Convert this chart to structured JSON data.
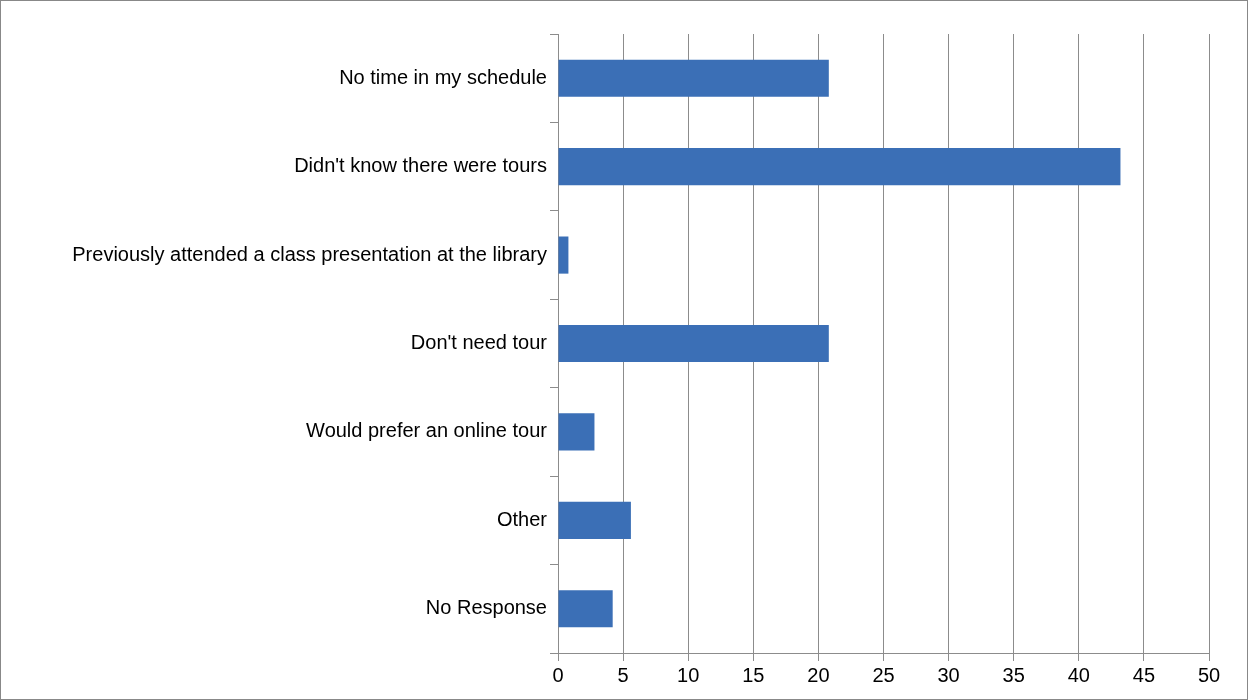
{
  "chart_data": {
    "type": "bar",
    "orientation": "horizontal",
    "categories": [
      "No time in my schedule",
      "Didn't know there were tours",
      "Previously attended a class presentation at the library",
      "Don't need tour",
      "Would prefer an online tour",
      "Other",
      "No Response"
    ],
    "values": [
      20.8,
      43.2,
      0.8,
      20.8,
      2.8,
      5.6,
      4.2
    ],
    "color": "#3b6fb6",
    "xlim": [
      0,
      50
    ],
    "xticks": [
      0,
      5,
      10,
      15,
      20,
      25,
      30,
      35,
      40,
      45,
      50
    ],
    "grid": "x",
    "legend": false
  }
}
